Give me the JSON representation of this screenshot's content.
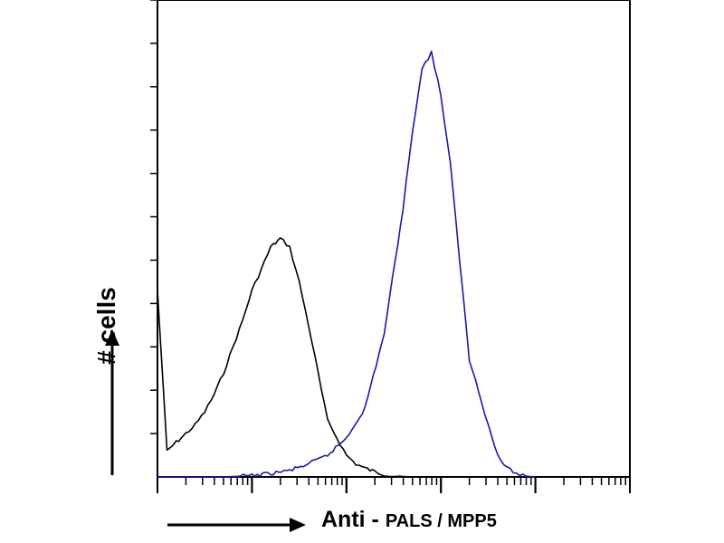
{
  "chart_data": {
    "type": "line",
    "title": "",
    "ylabel": "# cells",
    "xlabel_prefix": "Anti - ",
    "xlabel_target": "PALS / MPP5",
    "x_scale": "log",
    "xlim": [
      1,
      100000
    ],
    "ylim": [
      0,
      110
    ],
    "grid": false,
    "series": [
      {
        "color": "#000000",
        "x": [
          1,
          1.26,
          1.58,
          2,
          2.51,
          3.16,
          3.98,
          5.01,
          6.31,
          7.94,
          10,
          12.6,
          15.8,
          20,
          25.1,
          31.6,
          39.8,
          50.1,
          63.1,
          79.4,
          100,
          126,
          158,
          200,
          251,
          316,
          398,
          501,
          631,
          794,
          1000
        ],
        "values": [
          43,
          6,
          8,
          10,
          12,
          15,
          19,
          24,
          30,
          36,
          43,
          48,
          53,
          55,
          53,
          45,
          35,
          24,
          13,
          9,
          5,
          3,
          2,
          1.2,
          0.6,
          0.3,
          0.1,
          0,
          0,
          0,
          0
        ]
      },
      {
        "color": "#1a1aa6",
        "x": [
          1,
          5,
          10,
          15.8,
          25.1,
          39.8,
          63.1,
          100,
          158,
          251,
          398,
          501,
          631,
          794,
          1000,
          1260,
          1580,
          2000,
          2510,
          3160,
          3980,
          5010,
          6310,
          7940,
          10000
        ],
        "values": [
          0,
          0,
          0.3,
          0.8,
          1.5,
          3,
          5,
          9,
          16,
          33,
          62,
          80,
          94,
          98,
          88,
          72,
          50,
          27,
          20,
          12,
          5,
          2,
          0.8,
          0.2,
          0
        ]
      }
    ]
  }
}
